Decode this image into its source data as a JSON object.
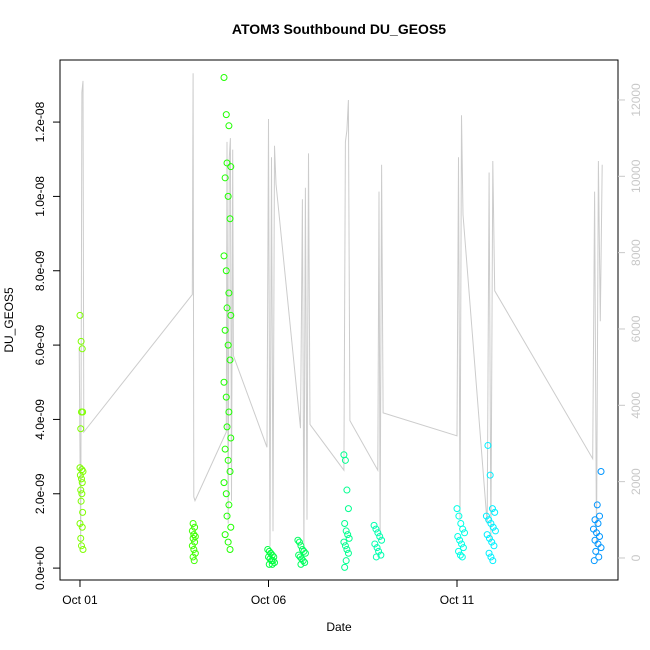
{
  "chart_data": {
    "type": "scatter",
    "title": "ATOM3 Southbound DU_GEOS5",
    "x_label": "Date",
    "y_label": "DU_GEOS5",
    "xlim": [
      -0.53,
      14.27
    ],
    "xticks": [
      {
        "value": 0,
        "label": "Oct 01"
      },
      {
        "value": 5,
        "label": "Oct 06"
      },
      {
        "value": 10,
        "label": "Oct 11"
      }
    ],
    "ylim": [
      -3.2e-10,
      1.367e-08
    ],
    "yticks": [
      {
        "value": 0,
        "label": "0.0e+00"
      },
      {
        "value": 2e-09,
        "label": "2.0e-09"
      },
      {
        "value": 4e-09,
        "label": "4.0e-09"
      },
      {
        "value": 6e-09,
        "label": "6.0e-09"
      },
      {
        "value": 8e-09,
        "label": "8.0e-09"
      },
      {
        "value": 1e-08,
        "label": "1.0e-08"
      },
      {
        "value": 1.2e-08,
        "label": "1.2e-08"
      }
    ],
    "y2lim": [
      -577,
      13047
    ],
    "y2ticks": [
      0,
      2000,
      4000,
      6000,
      8000,
      10000,
      12000
    ],
    "y2_color": "#c8c8c8",
    "series": [
      {
        "axis": "y2",
        "color": "#cccccc",
        "x": [
          -0.02,
          0.02,
          0.05,
          0.08,
          0.1,
          2.98,
          3.0,
          3.02,
          3.05,
          3.88,
          3.9,
          3.93,
          3.96,
          3.99,
          4.02,
          4.05,
          4.07,
          4.96,
          5.0,
          5.04,
          5.08,
          5.12,
          5.16,
          5.2,
          5.85,
          5.9,
          5.94,
          5.98,
          6.02,
          6.06,
          6.1,
          7.0,
          7.04,
          7.08,
          7.12,
          7.16,
          7.9,
          7.93,
          7.96,
          8.0,
          8.04,
          10.0,
          10.04,
          10.08,
          10.12,
          10.16,
          10.8,
          10.85,
          10.9,
          10.95,
          11.0,
          13.6,
          13.65,
          13.7,
          13.75,
          13.8,
          13.85
        ],
        "values": [
          5500,
          300,
          12200,
          12500,
          3300,
          6900,
          12700,
          1600,
          1500,
          3300,
          10900,
          900,
          10500,
          11000,
          1500,
          10700,
          5300,
          2900,
          11500,
          300,
          10500,
          700,
          10800,
          9800,
          3400,
          9400,
          200,
          9700,
          1000,
          10600,
          3500,
          2300,
          10900,
          11200,
          12000,
          3600,
          2300,
          9600,
          500,
          10300,
          3800,
          3200,
          10500,
          1000,
          11600,
          9000,
          900,
          10100,
          400,
          10400,
          7000,
          2600,
          9600,
          300,
          10400,
          6200,
          10300
        ]
      },
      {
        "color": "#7fff00",
        "x": [
          0.0,
          0.03,
          0.06,
          0.04,
          0.07,
          0.02,
          0.0,
          0.05,
          0.08,
          0.01,
          0.04,
          0.06,
          0.02,
          0.05,
          0.03,
          0.07,
          0.0,
          0.06,
          0.02,
          0.04,
          0.08
        ],
        "values": [
          6.8e-09,
          6.1e-09,
          5.9e-09,
          4.2e-09,
          4.2e-09,
          3.75e-09,
          2.7e-09,
          2.65e-09,
          2.6e-09,
          2.5e-09,
          2.4e-09,
          2.3e-09,
          2.1e-09,
          2e-09,
          1.8e-09,
          1.5e-09,
          1.2e-09,
          1.1e-09,
          8e-10,
          6e-10,
          5e-10
        ]
      },
      {
        "color": "#3fff00",
        "x": [
          3.0,
          3.04,
          2.98,
          3.02,
          3.06,
          3.0,
          3.04,
          2.98,
          3.02,
          3.06,
          3.0,
          3.03
        ],
        "values": [
          1.2e-09,
          1.1e-09,
          1e-09,
          9e-10,
          8.5e-10,
          8e-10,
          7e-10,
          6e-10,
          5e-10,
          4e-10,
          3e-10,
          2e-10
        ]
      },
      {
        "color": "#1fff00",
        "x": [
          3.82,
          3.88,
          3.95,
          3.9,
          4.0,
          3.85,
          3.93,
          3.98,
          3.82,
          3.88,
          3.95,
          3.9,
          4.0,
          3.85,
          3.93,
          3.98,
          3.82,
          3.88,
          3.95,
          3.9,
          4.0,
          3.85,
          3.93,
          3.98,
          3.82,
          3.88,
          3.95,
          3.9,
          4.0,
          3.85,
          3.93,
          3.98
        ],
        "values": [
          1.32e-08,
          1.22e-08,
          1.19e-08,
          1.09e-08,
          1.08e-08,
          1.05e-08,
          1e-08,
          9.4e-09,
          8.4e-09,
          8e-09,
          7.4e-09,
          7e-09,
          6.8e-09,
          6.4e-09,
          6e-09,
          5.6e-09,
          5e-09,
          4.6e-09,
          4.2e-09,
          3.8e-09,
          3.5e-09,
          3.2e-09,
          2.9e-09,
          2.6e-09,
          2.3e-09,
          2e-09,
          1.7e-09,
          1.4e-09,
          1.1e-09,
          9e-10,
          7e-10,
          5e-10
        ]
      },
      {
        "color": "#00ff3f",
        "x": [
          4.98,
          5.02,
          5.06,
          5.1,
          5.14,
          5.0,
          5.04,
          5.08,
          5.12,
          5.16,
          5.02,
          5.1
        ],
        "values": [
          5e-10,
          4.5e-10,
          4e-10,
          3.5e-10,
          3e-10,
          3e-10,
          2.5e-10,
          2e-10,
          2e-10,
          1.5e-10,
          1e-10,
          1e-10
        ]
      },
      {
        "color": "#00ff5f",
        "x": [
          5.78,
          5.82,
          5.86,
          5.9,
          5.94,
          5.98,
          5.8,
          5.84,
          5.88,
          5.92,
          5.96,
          5.86
        ],
        "values": [
          7.5e-10,
          7e-10,
          6e-10,
          5e-10,
          4.5e-10,
          4e-10,
          3.5e-10,
          3e-10,
          2.5e-10,
          2e-10,
          1.5e-10,
          1e-10
        ]
      },
      {
        "color": "#00ff8f",
        "x": [
          7.0,
          7.04,
          7.08,
          7.12,
          7.02,
          7.06,
          7.1,
          7.14,
          7.0,
          7.04,
          7.08,
          7.12,
          7.06,
          7.02
        ],
        "values": [
          3.05e-09,
          2.9e-09,
          2.1e-09,
          1.6e-09,
          1.2e-09,
          1e-09,
          9e-10,
          8e-10,
          7e-10,
          6e-10,
          5e-10,
          4e-10,
          2e-10,
          2e-11
        ]
      },
      {
        "color": "#00ffaf",
        "x": [
          7.8,
          7.85,
          7.9,
          7.95,
          8.0,
          7.82,
          7.88,
          7.92,
          7.98,
          7.86
        ],
        "values": [
          1.15e-09,
          1.05e-09,
          9.5e-10,
          8.5e-10,
          7.5e-10,
          6.5e-10,
          5.5e-10,
          4.5e-10,
          3.5e-10,
          3e-10
        ]
      },
      {
        "color": "#00ffe6",
        "x": [
          10.0,
          10.05,
          10.1,
          10.15,
          10.2,
          10.02,
          10.07,
          10.12,
          10.17,
          10.04,
          10.09,
          10.14
        ],
        "values": [
          1.6e-09,
          1.4e-09,
          1.2e-09,
          1.05e-09,
          9.5e-10,
          8.5e-10,
          7.5e-10,
          6.5e-10,
          5.5e-10,
          4.5e-10,
          3.5e-10,
          3e-10
        ]
      },
      {
        "color": "#00f0ff",
        "x": [
          10.82,
          10.88,
          10.94,
          11.0,
          10.78,
          10.84,
          10.9,
          10.96,
          11.02,
          10.8,
          10.86,
          10.92,
          10.98,
          10.85,
          10.9,
          10.95
        ],
        "values": [
          3.3e-09,
          2.5e-09,
          1.6e-09,
          1.5e-09,
          1.4e-09,
          1.3e-09,
          1.2e-09,
          1.1e-09,
          1e-09,
          9e-10,
          8e-10,
          7e-10,
          6e-10,
          4e-10,
          3e-10,
          2e-10
        ]
      },
      {
        "color": "#0096ff",
        "x": [
          13.82,
          13.72,
          13.78,
          13.66,
          13.74,
          13.62,
          13.7,
          13.78,
          13.66,
          13.74,
          13.82,
          13.68,
          13.76,
          13.64
        ],
        "values": [
          2.6e-09,
          1.7e-09,
          1.4e-09,
          1.3e-09,
          1.2e-09,
          1.05e-09,
          9.5e-10,
          8.5e-10,
          7.5e-10,
          6.5e-10,
          5.5e-10,
          4.5e-10,
          3e-10,
          2e-10
        ]
      }
    ]
  }
}
